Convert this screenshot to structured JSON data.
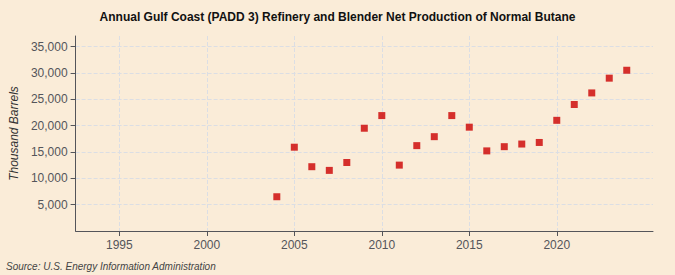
{
  "chart_data": {
    "type": "scatter",
    "title": "Annual Gulf Coast (PADD 3) Refinery and Blender Net Production of Normal Butane",
    "ylabel": "Thousand Barrels",
    "annotations": [
      "Source: U.S. Energy Information Administration"
    ],
    "x": [
      2004,
      2005,
      2006,
      2007,
      2008,
      2009,
      2010,
      2011,
      2012,
      2013,
      2014,
      2015,
      2016,
      2017,
      2018,
      2019,
      2020,
      2021,
      2022,
      2023,
      2024
    ],
    "values": [
      6500,
      15900,
      12200,
      11500,
      13000,
      19500,
      21900,
      12500,
      16200,
      17900,
      21900,
      19700,
      15200,
      16000,
      16500,
      16800,
      21000,
      24000,
      26200,
      29000,
      30500
    ],
    "color": "#cc0000",
    "marker": "square",
    "xlim": [
      1992.5,
      2025.5
    ],
    "xticks": [
      1995,
      2000,
      2005,
      2010,
      2015,
      2020
    ],
    "ylim": [
      0,
      37000
    ],
    "yticks": [
      {
        "value": 5000,
        "label": "5,000"
      },
      {
        "value": 10000,
        "label": "10,000"
      },
      {
        "value": 15000,
        "label": "15,000"
      },
      {
        "value": 20000,
        "label": "20,000"
      },
      {
        "value": 25000,
        "label": "25,000"
      },
      {
        "value": 30000,
        "label": "30,000"
      },
      {
        "value": 35000,
        "label": "35,000"
      }
    ],
    "grid": true
  }
}
